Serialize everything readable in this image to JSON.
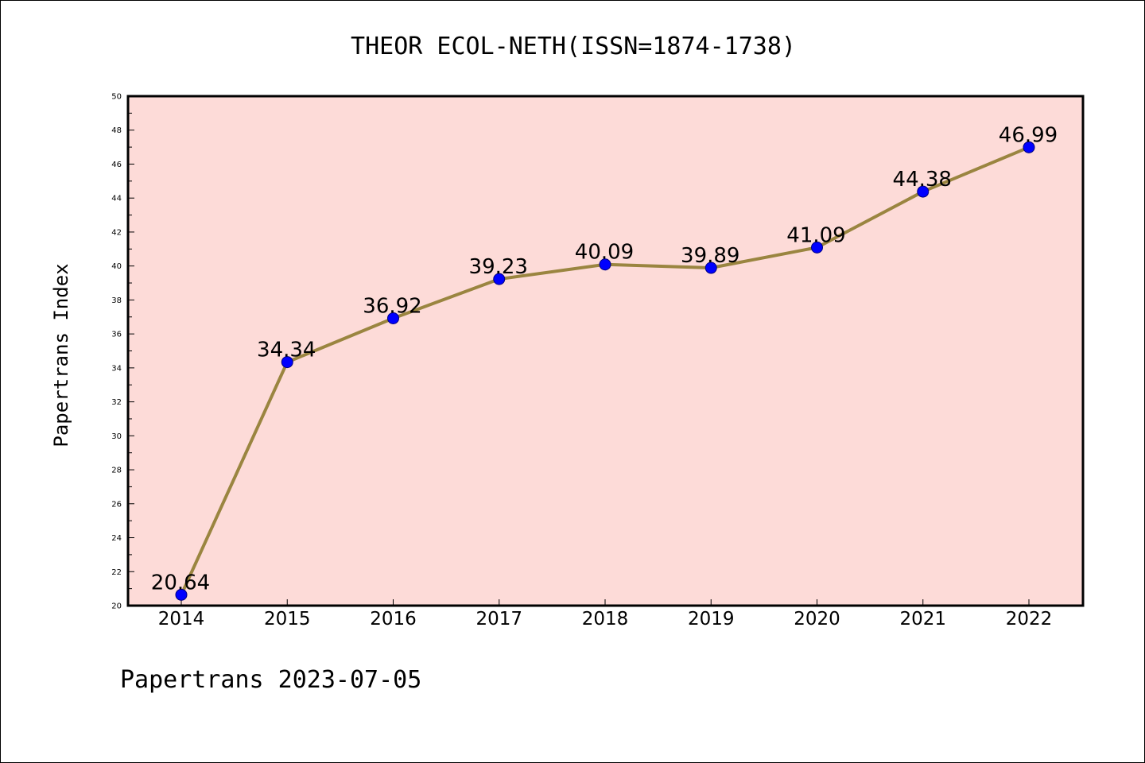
{
  "chart_data": {
    "type": "line",
    "title": "THEOR ECOL-NETH(ISSN=1874-1738)",
    "xlabel": "",
    "ylabel": "Papertrans Index",
    "categories": [
      "2014",
      "2015",
      "2016",
      "2017",
      "2018",
      "2019",
      "2020",
      "2021",
      "2022"
    ],
    "values": [
      20.64,
      34.34,
      36.92,
      39.23,
      40.09,
      39.89,
      41.09,
      44.38,
      46.99
    ],
    "data_labels": [
      "20.64",
      "34.34",
      "36.92",
      "39.23",
      "40.09",
      "39.89",
      "41.09",
      "44.38",
      "46.99"
    ],
    "ylim": [
      20,
      50
    ],
    "y_ticks": [
      20,
      22,
      24,
      26,
      28,
      30,
      32,
      34,
      36,
      38,
      40,
      42,
      44,
      46,
      48,
      50
    ],
    "grid": false,
    "legend": "none",
    "footer": "Papertrans 2023-07-05",
    "colors": {
      "plot_background": "#fddbd8",
      "line": "#9a8540",
      "marker_fill": "#0000ff",
      "marker_stroke": "#000080",
      "axis": "#000000"
    }
  }
}
